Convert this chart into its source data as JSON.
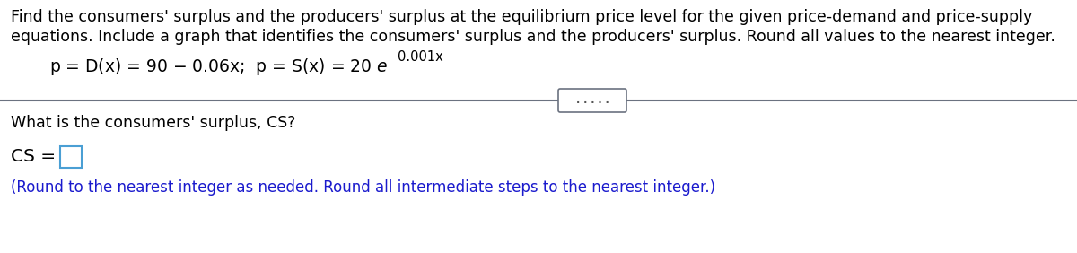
{
  "title_line1": "Find the consumers' surplus and the producers' surplus at the equilibrium price level for the given price-demand and price-supply",
  "title_line2": "equations. Include a graph that identifies the consumers' surplus and the producers' surplus. Round all values to the nearest integer.",
  "question_text": "What is the consumers' surplus, CS?",
  "cs_label": "CS = ",
  "note_text": "(Round to the nearest integer as needed. Round all intermediate steps to the nearest integer.)",
  "bg_color": "#ffffff",
  "text_color": "#000000",
  "blue_color": "#1a1acd",
  "divider_color": "#6b7280",
  "box_border_color": "#4a9fd4",
  "dots_color": "#555555",
  "font_size_body": 12.5,
  "font_size_eq": 13.5,
  "font_size_sup": 10.5,
  "font_size_note": 12.0,
  "font_size_cs": 14.5
}
